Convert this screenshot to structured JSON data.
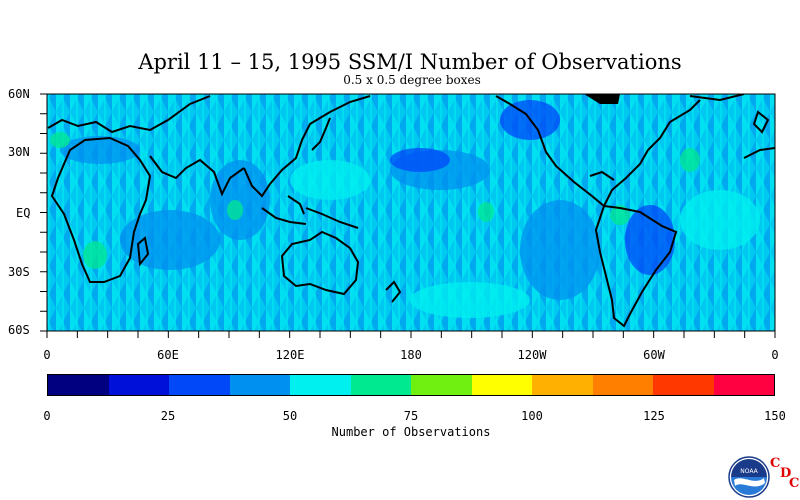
{
  "title": "April 11 – 15, 1995 SSM/I Number of Observations",
  "subtitle": "0.5 x 0.5 degree boxes",
  "lat_labels": [
    "60N",
    "30N",
    "EQ",
    "30S",
    "60S"
  ],
  "lon_labels": [
    "0",
    "60E",
    "120E",
    "180",
    "120W",
    "60W",
    "0"
  ],
  "colorbar": {
    "title": "Number of Observations",
    "tick_labels": [
      "0",
      "25",
      "50",
      "75",
      "100",
      "125",
      "150"
    ],
    "colors": [
      "#000080",
      "#0010d8",
      "#0048f8",
      "#0090f0",
      "#00f0f0",
      "#00e890",
      "#70f010",
      "#ffff00",
      "#ffb000",
      "#ff8000",
      "#ff3800",
      "#ff0040"
    ]
  },
  "map_colors": {
    "ocean_base": "#00c8f0",
    "ocean_low": "#0090f0",
    "ocean_mid": "#00f0f0",
    "ocean_high": "#00e890",
    "ocean_very_low": "#0048f8",
    "coastline": "#000000",
    "ice": "#000000"
  },
  "logo": {
    "text": "NOAA",
    "letters": [
      "C",
      "D",
      "C"
    ]
  }
}
